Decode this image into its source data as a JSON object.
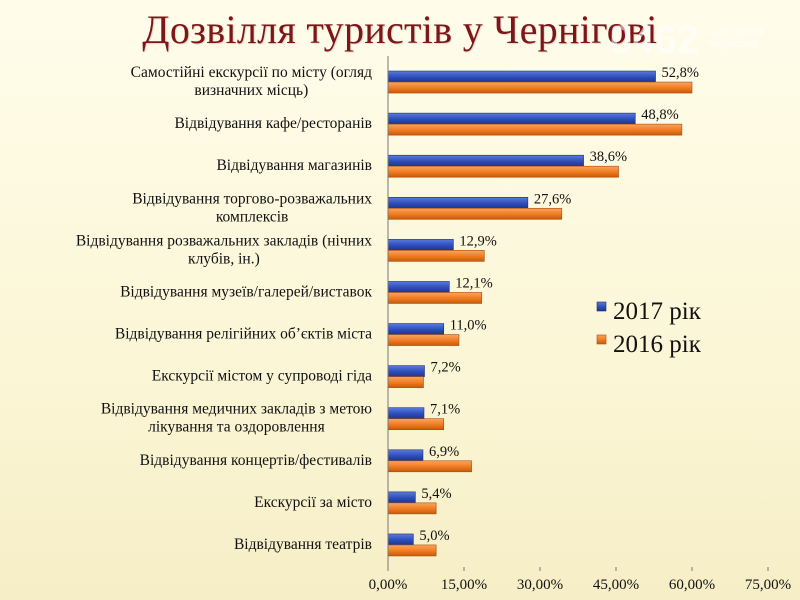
{
  "title": "Дозвілля туристів у Чернігові",
  "watermark": {
    "number": "0462",
    "caption": "Сайт міста Чернігова"
  },
  "colors": {
    "series_2017": "#2E4DB8",
    "series_2016": "#F07A1E",
    "title": "#7E1518"
  },
  "chart_data": {
    "type": "bar",
    "orientation": "horizontal",
    "title": "Дозвілля туристів у Чернігові",
    "categories": [
      [
        "Самостійні екскурсії по місту (огляд",
        "визначних місць)"
      ],
      [
        "Відвідування кафе/ресторанів"
      ],
      [
        "Відвідування магазинів"
      ],
      [
        "Відвідування торгово-розважальних",
        "комплексів"
      ],
      [
        "Відвідування розважальних закладів (нічних",
        "клубів, ін.)"
      ],
      [
        "Відвідування музеїв/галерей/виставок"
      ],
      [
        "Відвідування релігійних об’єктів міста"
      ],
      [
        "Екскурсії містом у супроводі гіда"
      ],
      [
        "Відвідування медичних закладів з метою",
        "лікування та оздоровлення"
      ],
      [
        "Відвідування концертів/фестивалів"
      ],
      [
        "Екскурсії за місто"
      ],
      [
        "Відвідування театрів"
      ]
    ],
    "series": [
      {
        "name": "2017 рік",
        "color": "#2E4DB8",
        "values": [
          52.8,
          48.8,
          38.6,
          27.6,
          12.9,
          12.1,
          11.0,
          7.2,
          7.1,
          6.9,
          5.4,
          5.0
        ],
        "labels": [
          "52,8%",
          "48,8%",
          "38,6%",
          "27,6%",
          "12,9%",
          "12,1%",
          "11,0%",
          "7,2%",
          "7,1%",
          "6,9%",
          "5,4%",
          "5,0%"
        ]
      },
      {
        "name": "2016 рік",
        "color": "#F07A1E",
        "values": [
          60.0,
          58.0,
          45.5,
          34.3,
          19.0,
          18.5,
          14.0,
          7.0,
          11.0,
          16.5,
          9.5,
          9.5
        ]
      }
    ],
    "xlim": [
      0,
      75
    ],
    "xticks": [
      "0,00%",
      "15,00%",
      "30,00%",
      "45,00%",
      "60,00%",
      "75,00%"
    ],
    "legend": "right",
    "grid": false
  }
}
